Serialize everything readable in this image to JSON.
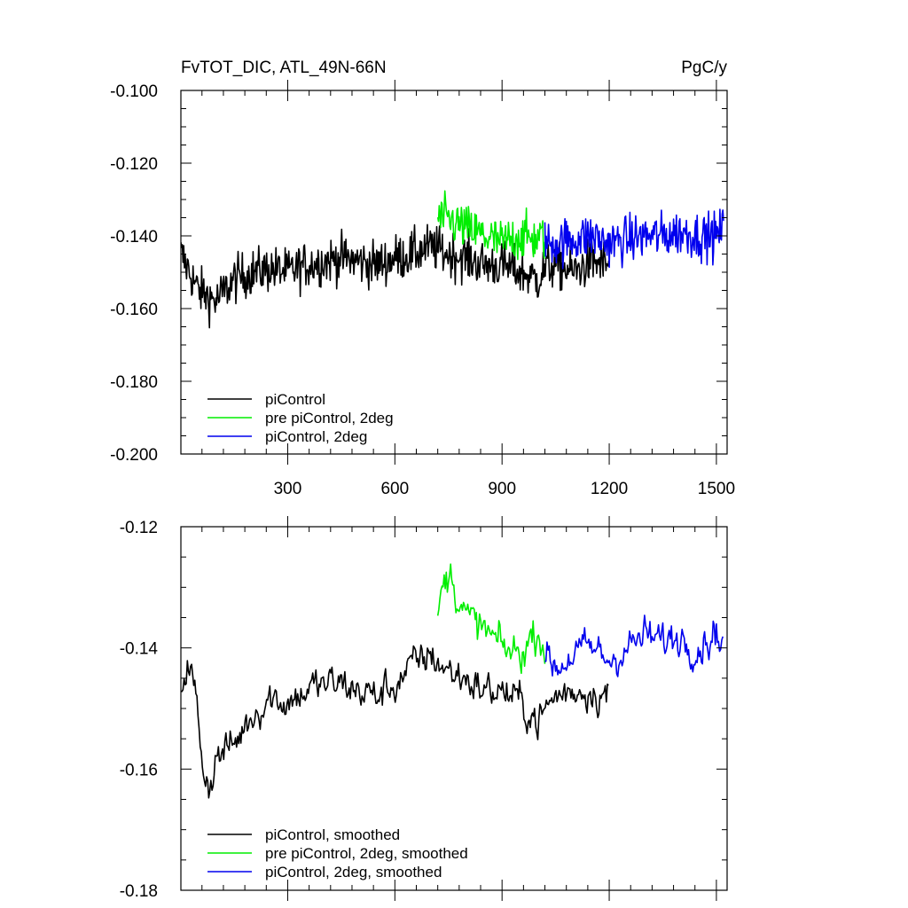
{
  "chart_data": [
    {
      "type": "line",
      "title": "FvTOT_DIC, ATL_49N-66N",
      "units": "PgC/y",
      "xlim": [
        1,
        1530
      ],
      "ylim": [
        -0.2,
        -0.1
      ],
      "xticks": [
        300,
        600,
        900,
        1200,
        1500
      ],
      "xtick_labels": [
        "300",
        "600",
        "900",
        "1200",
        "1500"
      ],
      "yticks": [
        -0.2,
        -0.18,
        -0.16,
        -0.14,
        -0.12,
        -0.1
      ],
      "ytick_labels": [
        "-0.200",
        "-0.180",
        "-0.160",
        "-0.140",
        "-0.120",
        "-0.100"
      ],
      "legend_position": "bottom-left",
      "series": [
        {
          "name": "piControl",
          "color": "#000000",
          "x": [
            1,
            50,
            100,
            150,
            200,
            250,
            300,
            350,
            400,
            450,
            500,
            550,
            600,
            650,
            700,
            750,
            800,
            850,
            900,
            950,
            1000,
            1020,
            1050,
            1100,
            1150,
            1200
          ],
          "values": [
            -0.145,
            -0.155,
            -0.158,
            -0.152,
            -0.15,
            -0.149,
            -0.15,
            -0.148,
            -0.147,
            -0.146,
            -0.147,
            -0.148,
            -0.146,
            -0.145,
            -0.143,
            -0.145,
            -0.146,
            -0.148,
            -0.148,
            -0.15,
            -0.152,
            -0.149,
            -0.148,
            -0.15,
            -0.147,
            -0.148
          ]
        },
        {
          "name": "pre piControl, 2deg",
          "color": "#00ee00",
          "x": [
            720,
            760,
            800,
            850,
            900,
            950,
            1000,
            1020
          ],
          "values": [
            -0.135,
            -0.136,
            -0.138,
            -0.14,
            -0.142,
            -0.14,
            -0.141,
            -0.14
          ]
        },
        {
          "name": "piControl, 2deg",
          "color": "#0000ee",
          "x": [
            1020,
            1050,
            1100,
            1150,
            1200,
            1250,
            1300,
            1350,
            1400,
            1450,
            1500,
            1520
          ],
          "values": [
            -0.142,
            -0.142,
            -0.141,
            -0.14,
            -0.142,
            -0.141,
            -0.14,
            -0.14,
            -0.139,
            -0.14,
            -0.14,
            -0.138
          ]
        }
      ]
    },
    {
      "type": "line",
      "xlim": [
        1,
        1530
      ],
      "ylim": [
        -0.18,
        -0.12
      ],
      "xticks": [
        300,
        600,
        900,
        1200,
        1500
      ],
      "yticks": [
        -0.18,
        -0.16,
        -0.14,
        -0.12
      ],
      "ytick_labels": [
        "-0.18",
        "-0.16",
        "-0.14",
        "-0.12"
      ],
      "legend_position": "bottom-left",
      "series": [
        {
          "name": "piControl, smoothed",
          "color": "#000000",
          "x": [
            1,
            20,
            40,
            60,
            80,
            100,
            150,
            200,
            250,
            300,
            350,
            400,
            450,
            500,
            550,
            600,
            650,
            700,
            750,
            800,
            850,
            900,
            950,
            1000,
            1050,
            1100,
            1150,
            1200
          ],
          "values": [
            -0.146,
            -0.142,
            -0.147,
            -0.158,
            -0.163,
            -0.158,
            -0.156,
            -0.151,
            -0.148,
            -0.149,
            -0.147,
            -0.146,
            -0.146,
            -0.147,
            -0.148,
            -0.146,
            -0.143,
            -0.141,
            -0.144,
            -0.145,
            -0.147,
            -0.147,
            -0.149,
            -0.152,
            -0.148,
            -0.147,
            -0.147,
            -0.148
          ]
        },
        {
          "name": "pre piControl, 2deg, smoothed",
          "color": "#00ee00",
          "x": [
            720,
            740,
            760,
            780,
            800,
            850,
            900,
            950,
            1000,
            1020
          ],
          "values": [
            -0.134,
            -0.129,
            -0.128,
            -0.132,
            -0.135,
            -0.137,
            -0.14,
            -0.141,
            -0.137,
            -0.14
          ]
        },
        {
          "name": "piControl, 2deg, smoothed",
          "color": "#0000ee",
          "x": [
            1020,
            1060,
            1100,
            1150,
            1200,
            1250,
            1300,
            1350,
            1400,
            1450,
            1500,
            1520
          ],
          "values": [
            -0.142,
            -0.143,
            -0.141,
            -0.14,
            -0.142,
            -0.14,
            -0.138,
            -0.139,
            -0.138,
            -0.14,
            -0.137,
            -0.14
          ]
        }
      ]
    }
  ]
}
